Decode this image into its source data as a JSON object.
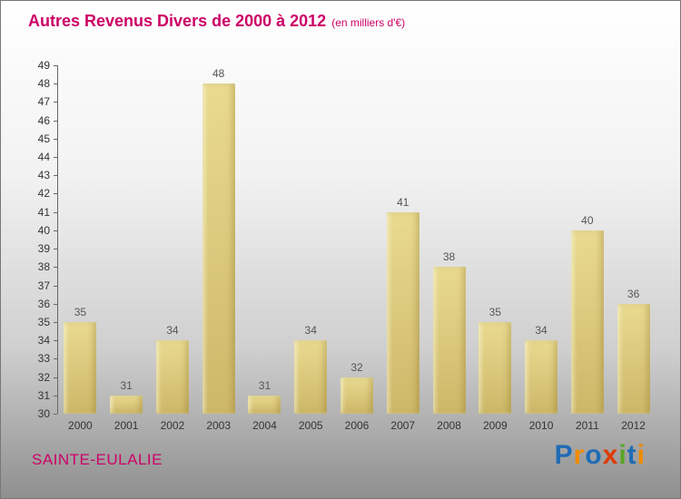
{
  "header": {
    "title": "Autres Revenus Divers de 2000 à 2012",
    "subtitle": "(en milliers d'€)",
    "title_color": "#cc0066"
  },
  "chart_data": {
    "type": "bar",
    "title": "Autres Revenus Divers de 2000 à 2012",
    "subtitle": "(en milliers d'€)",
    "categories": [
      "2000",
      "2001",
      "2002",
      "2003",
      "2004",
      "2005",
      "2006",
      "2007",
      "2008",
      "2009",
      "2010",
      "2011",
      "2012"
    ],
    "values": [
      35,
      31,
      34,
      48,
      31,
      34,
      32,
      41,
      38,
      35,
      34,
      40,
      36
    ],
    "xlabel": "",
    "ylabel": "",
    "ylim": [
      30,
      49
    ],
    "ytick_step": 1,
    "grid": false,
    "legend_position": "none",
    "bar_color_top": "#e9da90",
    "bar_color_bottom": "#cdb768",
    "value_label_color": "#555555",
    "axis_color": "#666666",
    "tick_label_color": "#333333"
  },
  "footer": {
    "commune": "SAINTE-EULALIE",
    "commune_color": "#cc0066",
    "logo_letters": [
      {
        "char": "P",
        "color": "#1f6cb5"
      },
      {
        "char": "r",
        "color": "#ef8b00"
      },
      {
        "char": "o",
        "color": "#1f6cb5"
      },
      {
        "char": "x",
        "color": "#e03a00"
      },
      {
        "char": "i",
        "color": "#59a524"
      },
      {
        "char": "t",
        "color": "#1f6cb5"
      },
      {
        "char": "i",
        "color": "#ef8b00"
      }
    ]
  }
}
